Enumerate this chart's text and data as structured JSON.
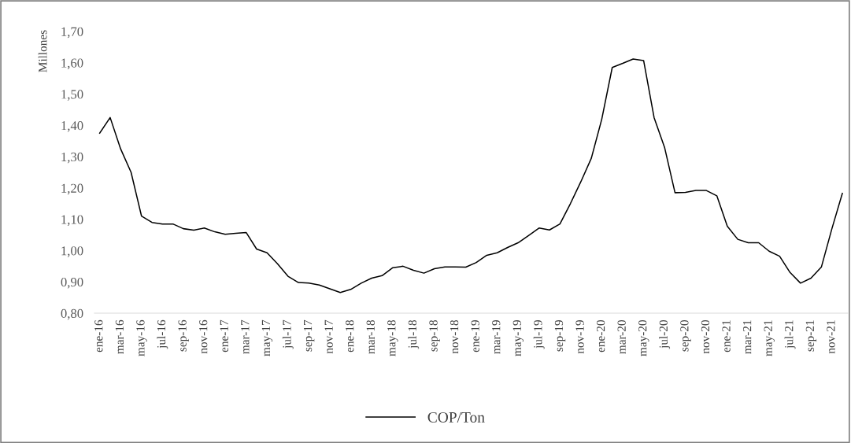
{
  "chart_data": {
    "type": "line",
    "ylabel": "Millones",
    "categories": [
      "ene-16",
      null,
      "mar-16",
      null,
      "may-16",
      null,
      "jul-16",
      null,
      "sep-16",
      null,
      "nov-16",
      null,
      "ene-17",
      null,
      "mar-17",
      null,
      "may-17",
      null,
      "jul-17",
      null,
      "sep-17",
      null,
      "nov-17",
      null,
      "ene-18",
      null,
      "mar-18",
      null,
      "may-18",
      null,
      "jul-18",
      null,
      "sep-18",
      null,
      "nov-18",
      null,
      "ene-19",
      null,
      "mar-19",
      null,
      "may-19",
      null,
      "jul-19",
      null,
      "sep-19",
      null,
      "nov-19",
      null,
      "ene-20",
      null,
      "mar-20",
      null,
      "may-20",
      null,
      "jul-20",
      null,
      "sep-20",
      null,
      "nov-20",
      null,
      "ene-21",
      null,
      "mar-21",
      null,
      "may-21",
      null,
      "jul-21",
      null,
      "sep-21",
      null,
      "nov-21",
      null
    ],
    "series": [
      {
        "name": "COP/Ton",
        "color": "#000000",
        "values": [
          1.375,
          1.425,
          1.325,
          1.25,
          1.11,
          1.09,
          1.085,
          1.085,
          1.07,
          1.065,
          1.072,
          1.06,
          1.052,
          1.055,
          1.058,
          1.005,
          0.993,
          0.958,
          0.918,
          0.898,
          0.896,
          0.89,
          0.878,
          0.866,
          0.876,
          0.896,
          0.912,
          0.92,
          0.945,
          0.95,
          0.937,
          0.928,
          0.942,
          0.948,
          0.948,
          0.947,
          0.962,
          0.985,
          0.993,
          1.01,
          1.025,
          1.048,
          1.072,
          1.066,
          1.085,
          1.15,
          1.22,
          1.295,
          1.42,
          1.585,
          1.598,
          1.612,
          1.607,
          1.425,
          1.33,
          1.185,
          1.186,
          1.192,
          1.192,
          1.175,
          1.078,
          1.036,
          1.025,
          1.025,
          0.998,
          0.982,
          0.93,
          0.896,
          0.912,
          0.948,
          1.07,
          1.183
        ]
      }
    ],
    "ylim": [
      0.8,
      1.7
    ],
    "yticks": [
      {
        "value": 0.8,
        "label": "0,80"
      },
      {
        "value": 0.9,
        "label": "0,90"
      },
      {
        "value": 1.0,
        "label": "1,00"
      },
      {
        "value": 1.1,
        "label": "1,10"
      },
      {
        "value": 1.2,
        "label": "1,20"
      },
      {
        "value": 1.3,
        "label": "1,30"
      },
      {
        "value": 1.4,
        "label": "1,40"
      },
      {
        "value": 1.5,
        "label": "1,50"
      },
      {
        "value": 1.6,
        "label": "1,60"
      },
      {
        "value": 1.7,
        "label": "1,70"
      }
    ],
    "grid": false,
    "legend": "bottom",
    "marker": "none",
    "line_style": "solid"
  }
}
